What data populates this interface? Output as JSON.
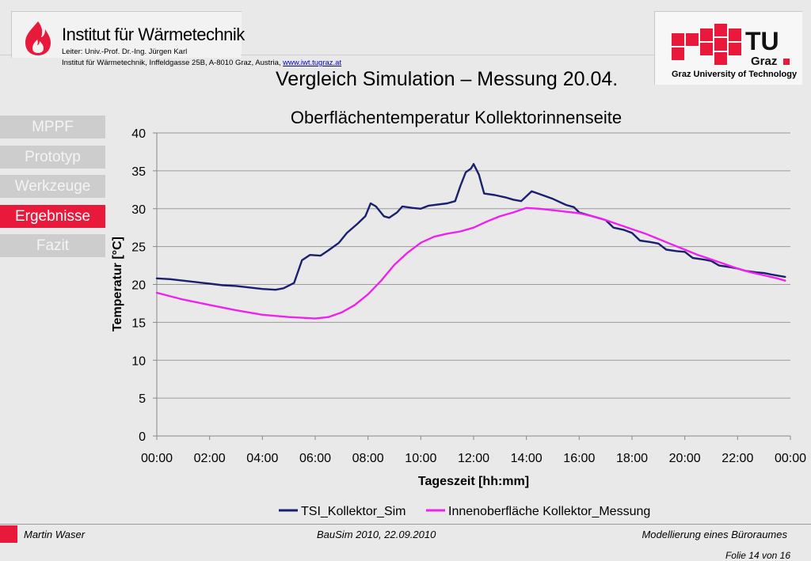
{
  "header": {
    "institute_name": "Institut für Wärmetechnik",
    "leader": "Leiter: Univ.-Prof. Dr.-Ing. Jürgen Karl",
    "address": "Institut für Wärmetechnik, Inffeldgasse 25B, A-8010 Graz, Austria,",
    "website": "www.iwt.tugraz.at",
    "slide_title": "Vergleich Simulation – Messung 20.04.",
    "university_logo_text": "TU Graz",
    "university_name": "Graz University of Technology"
  },
  "nav": {
    "items": [
      {
        "label": "MPPF"
      },
      {
        "label": "Prototyp"
      },
      {
        "label": "Werkzeuge"
      },
      {
        "label": "Ergebnisse",
        "active": true
      },
      {
        "label": "Fazit"
      }
    ]
  },
  "chart_data": {
    "type": "line",
    "title": "Oberflächentemperatur Kollektorinnenseite",
    "xlabel": "Tageszeit [hh:mm]",
    "ylabel": "Temperatur [°C]",
    "ylim": [
      0,
      40
    ],
    "yticks": [
      "0",
      "5",
      "10",
      "15",
      "20",
      "25",
      "30",
      "35",
      "40"
    ],
    "xlim": [
      0,
      24
    ],
    "xticks": [
      "00:00",
      "02:00",
      "04:00",
      "06:00",
      "08:00",
      "10:00",
      "12:00",
      "14:00",
      "16:00",
      "18:00",
      "20:00",
      "22:00",
      "00:00"
    ],
    "grid": "horizontal",
    "legend_position": "bottom",
    "series": [
      {
        "name": "TSI_Kollektor_Sim",
        "color": "#1a1f6e",
        "points": [
          [
            0,
            20.8
          ],
          [
            0.5,
            20.7
          ],
          [
            1,
            20.5
          ],
          [
            1.5,
            20.3
          ],
          [
            2,
            20.1
          ],
          [
            2.5,
            19.9
          ],
          [
            3,
            19.8
          ],
          [
            3.5,
            19.6
          ],
          [
            4,
            19.4
          ],
          [
            4.5,
            19.3
          ],
          [
            4.8,
            19.5
          ],
          [
            5.2,
            20.2
          ],
          [
            5.5,
            23.2
          ],
          [
            5.8,
            23.9
          ],
          [
            6.2,
            23.8
          ],
          [
            6.5,
            24.5
          ],
          [
            6.9,
            25.5
          ],
          [
            7.2,
            26.8
          ],
          [
            7.6,
            28.0
          ],
          [
            7.9,
            29.0
          ],
          [
            8.1,
            30.7
          ],
          [
            8.3,
            30.3
          ],
          [
            8.6,
            29.0
          ],
          [
            8.8,
            28.8
          ],
          [
            9.1,
            29.5
          ],
          [
            9.3,
            30.3
          ],
          [
            9.7,
            30.1
          ],
          [
            10,
            30.0
          ],
          [
            10.3,
            30.4
          ],
          [
            11,
            30.7
          ],
          [
            11.3,
            31.0
          ],
          [
            11.5,
            33.0
          ],
          [
            11.7,
            34.8
          ],
          [
            11.9,
            35.3
          ],
          [
            12,
            35.9
          ],
          [
            12.2,
            34.5
          ],
          [
            12.4,
            32.0
          ],
          [
            12.8,
            31.8
          ],
          [
            13.2,
            31.5
          ],
          [
            13.5,
            31.2
          ],
          [
            13.8,
            31.0
          ],
          [
            14.2,
            32.3
          ],
          [
            14.6,
            31.8
          ],
          [
            15,
            31.3
          ],
          [
            15.5,
            30.5
          ],
          [
            15.8,
            30.2
          ],
          [
            16,
            29.5
          ],
          [
            16.3,
            29.2
          ],
          [
            16.7,
            28.8
          ],
          [
            17,
            28.5
          ],
          [
            17.3,
            27.5
          ],
          [
            17.7,
            27.2
          ],
          [
            18,
            26.8
          ],
          [
            18.3,
            25.8
          ],
          [
            18.7,
            25.6
          ],
          [
            19,
            25.4
          ],
          [
            19.3,
            24.6
          ],
          [
            19.7,
            24.4
          ],
          [
            20,
            24.3
          ],
          [
            20.3,
            23.5
          ],
          [
            20.7,
            23.3
          ],
          [
            21,
            23.1
          ],
          [
            21.3,
            22.5
          ],
          [
            21.7,
            22.3
          ],
          [
            22,
            22.1
          ],
          [
            22.3,
            21.8
          ],
          [
            22.7,
            21.6
          ],
          [
            23,
            21.5
          ],
          [
            23.3,
            21.3
          ],
          [
            23.8,
            21.0
          ]
        ]
      },
      {
        "name": "Innenoberfläche Kollektor_Messung",
        "color": "#ee22ee",
        "points": [
          [
            0,
            18.9
          ],
          [
            1,
            18.0
          ],
          [
            2,
            17.3
          ],
          [
            3,
            16.6
          ],
          [
            4,
            16.0
          ],
          [
            5,
            15.7
          ],
          [
            5.5,
            15.6
          ],
          [
            6,
            15.5
          ],
          [
            6.5,
            15.7
          ],
          [
            7,
            16.3
          ],
          [
            7.5,
            17.3
          ],
          [
            8,
            18.7
          ],
          [
            8.5,
            20.5
          ],
          [
            9,
            22.6
          ],
          [
            9.5,
            24.2
          ],
          [
            10,
            25.5
          ],
          [
            10.5,
            26.3
          ],
          [
            11,
            26.7
          ],
          [
            11.5,
            27.0
          ],
          [
            12,
            27.5
          ],
          [
            12.5,
            28.3
          ],
          [
            13,
            29.0
          ],
          [
            13.5,
            29.5
          ],
          [
            14,
            30.1
          ],
          [
            14.5,
            30.0
          ],
          [
            15,
            29.8
          ],
          [
            15.5,
            29.6
          ],
          [
            16,
            29.4
          ],
          [
            16.5,
            29.0
          ],
          [
            17,
            28.5
          ],
          [
            17.5,
            27.9
          ],
          [
            18,
            27.3
          ],
          [
            18.5,
            26.7
          ],
          [
            19,
            26.0
          ],
          [
            19.5,
            25.3
          ],
          [
            20,
            24.6
          ],
          [
            20.5,
            23.9
          ],
          [
            21,
            23.3
          ],
          [
            21.5,
            22.7
          ],
          [
            22,
            22.1
          ],
          [
            22.5,
            21.6
          ],
          [
            23,
            21.2
          ],
          [
            23.5,
            20.8
          ],
          [
            23.8,
            20.5
          ]
        ]
      }
    ]
  },
  "footer": {
    "author": "Martin Waser",
    "event": "BauSim 2010, 22.09.2010",
    "topic": "Modellierung eines Büroraumes",
    "page": "Folie 14 von 16"
  }
}
